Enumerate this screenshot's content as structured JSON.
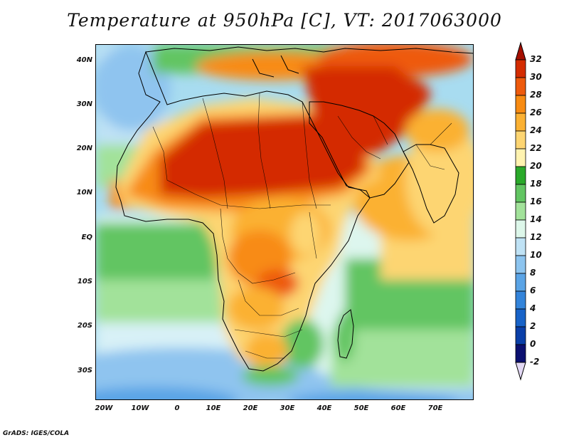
{
  "title": "Temperature at 950hPa [C], VT: 2017063000",
  "credit": "GrADS: IGES/COLA",
  "map": {
    "projection": "latitude-longitude",
    "lon_range": [
      -24,
      80
    ],
    "lat_range": [
      -37,
      45
    ],
    "lat_labels": [
      "40N",
      "30N",
      "20N",
      "10N",
      "EQ",
      "10S",
      "20S",
      "30S"
    ],
    "lon_labels": [
      "20W",
      "10W",
      "0",
      "10E",
      "20E",
      "30E",
      "40E",
      "50E",
      "60E",
      "70E"
    ],
    "features": [
      "Africa",
      "Arabian Peninsula",
      "Middle East",
      "India",
      "Mediterranean Sea",
      "Red Sea",
      "Madagascar",
      "political boundaries"
    ]
  },
  "colorbar": {
    "ticks": [
      "32",
      "30",
      "28",
      "26",
      "24",
      "22",
      "20",
      "18",
      "16",
      "14",
      "12",
      "10",
      "8",
      "6",
      "4",
      "2",
      "0",
      "-2"
    ],
    "colors": [
      "#a50f00",
      "#d42c00",
      "#ee5a0c",
      "#f88b12",
      "#fbb133",
      "#fdd572",
      "#fff3b0",
      "#2aa92a",
      "#62c562",
      "#a2e29a",
      "#ddf7ea",
      "#bfe2f5",
      "#8cc4ef",
      "#5aa4e6",
      "#3384da",
      "#1863c8",
      "#0a3fa8",
      "#0b1070",
      "#e2d8f4"
    ]
  }
}
